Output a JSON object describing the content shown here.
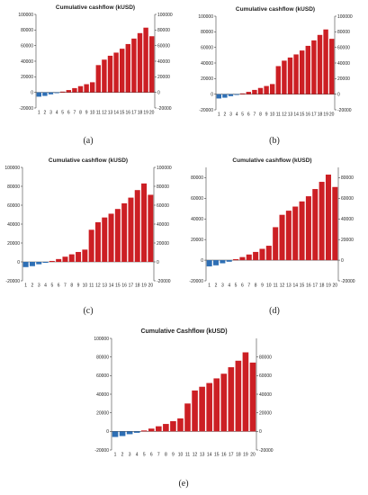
{
  "chart_data": [
    {
      "panel": "a",
      "caption": "(a)",
      "type": "bar",
      "title": "Cumulative cashflow (kUSD)",
      "categories": [
        "1",
        "2",
        "3",
        "4",
        "5",
        "6",
        "7",
        "8",
        "9",
        "10",
        "11",
        "12",
        "13",
        "14",
        "15",
        "16",
        "17",
        "18",
        "19",
        "20"
      ],
      "values": [
        -5500,
        -4500,
        -2500,
        -1000,
        1000,
        3000,
        5500,
        8000,
        10500,
        13000,
        35000,
        42000,
        47000,
        51000,
        56000,
        62000,
        69000,
        76000,
        83000,
        72000
      ],
      "ylim": [
        -20000,
        100000
      ],
      "yticks": [
        "100000",
        "80000",
        "60000",
        "40000",
        "20000",
        "0",
        "-20000"
      ],
      "right_yticks": [
        "100000",
        "80000",
        "60000",
        "40000",
        "20000",
        "0",
        "-20000"
      ],
      "colors": {
        "negative": "#2e6fb5",
        "positive": "#cc1f24"
      }
    },
    {
      "panel": "b",
      "caption": "(b)",
      "type": "bar",
      "title": "Cumulative cashflow (kUSD)",
      "categories": [
        "1",
        "2",
        "3",
        "4",
        "5",
        "6",
        "7",
        "8",
        "9",
        "10",
        "11",
        "12",
        "13",
        "14",
        "15",
        "16",
        "17",
        "18",
        "19",
        "20"
      ],
      "values": [
        -5500,
        -4500,
        -2500,
        -1000,
        1000,
        3000,
        5500,
        8000,
        10500,
        13000,
        36000,
        43000,
        47000,
        51000,
        56000,
        62000,
        69000,
        76000,
        83000,
        71000
      ],
      "ylim": [
        -20000,
        100000
      ],
      "yticks": [
        "100000",
        "80000",
        "60000",
        "40000",
        "20000",
        "0",
        "-20000"
      ],
      "right_yticks": [
        "100000",
        "80000",
        "60000",
        "40000",
        "20000",
        "0",
        "-20000"
      ],
      "colors": {
        "negative": "#2e6fb5",
        "positive": "#cc1f24"
      }
    },
    {
      "panel": "c",
      "caption": "(c)",
      "type": "bar",
      "title": "Cumulative cashflow (kUSD)",
      "categories": [
        "1",
        "2",
        "3",
        "4",
        "5",
        "6",
        "7",
        "8",
        "9",
        "10",
        "11",
        "12",
        "13",
        "14",
        "15",
        "16",
        "17",
        "18",
        "19",
        "20"
      ],
      "values": [
        -5500,
        -4500,
        -2500,
        -1000,
        1000,
        3000,
        5500,
        8000,
        10500,
        13000,
        34000,
        42000,
        47000,
        51000,
        56000,
        62000,
        68000,
        76000,
        83000,
        71000
      ],
      "ylim": [
        -20000,
        100000
      ],
      "yticks": [
        "100000",
        "80000",
        "60000",
        "40000",
        "20000",
        "0",
        "-20000"
      ],
      "right_yticks": [
        "100000",
        "80000",
        "60000",
        "40000",
        "20000",
        "0",
        "-20000"
      ],
      "colors": {
        "negative": "#2e6fb5",
        "positive": "#cc1f24"
      }
    },
    {
      "panel": "d",
      "caption": "(d)",
      "type": "bar",
      "title": "Cumulative cashflow (kUSD)",
      "categories": [
        "1",
        "2",
        "3",
        "4",
        "5",
        "6",
        "7",
        "8",
        "9",
        "10",
        "11",
        "12",
        "13",
        "14",
        "15",
        "16",
        "17",
        "18",
        "19",
        "20"
      ],
      "values": [
        -6000,
        -5000,
        -3000,
        -1500,
        1000,
        3000,
        5500,
        8000,
        11000,
        14000,
        32000,
        44000,
        48000,
        52000,
        57000,
        62000,
        69000,
        76000,
        83000,
        71000
      ],
      "ylim": [
        -20000,
        90000
      ],
      "yticks": [
        "80000",
        "60000",
        "40000",
        "20000",
        "0",
        "-20000"
      ],
      "right_yticks": [
        "80000",
        "60000",
        "40000",
        "20000",
        "0",
        "-20000"
      ],
      "colors": {
        "negative": "#2e6fb5",
        "positive": "#cc1f24"
      }
    },
    {
      "panel": "e",
      "caption": "(e)",
      "type": "bar",
      "title": "Cumulative Cashflow (kUSD)",
      "categories": [
        "1",
        "2",
        "3",
        "4",
        "5",
        "6",
        "7",
        "8",
        "9",
        "10",
        "11",
        "12",
        "13",
        "14",
        "15",
        "16",
        "17",
        "18",
        "19",
        "20"
      ],
      "values": [
        -6000,
        -5000,
        -3000,
        -1500,
        1000,
        3000,
        5500,
        8000,
        11000,
        14000,
        30000,
        44000,
        48000,
        52000,
        57000,
        62000,
        69000,
        76000,
        85000,
        74000
      ],
      "ylim": [
        -20000,
        100000
      ],
      "yticks": [
        "100000",
        "80000",
        "60000",
        "40000",
        "20000",
        "0",
        "-20000"
      ],
      "right_yticks": [
        "80000",
        "60000",
        "40000",
        "20000",
        "0",
        "-20000"
      ],
      "colors": {
        "negative": "#2e6fb5",
        "positive": "#cc1f24"
      }
    }
  ]
}
